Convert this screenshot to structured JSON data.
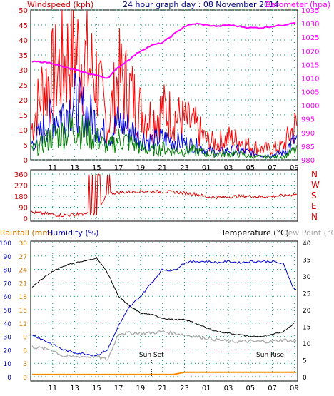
{
  "colors": {
    "windspeed": "#ff0000",
    "gust_red": "#ff0000",
    "avg_blue": "#0000dd",
    "avg_green": "#008000",
    "barometer": "#ff00ff",
    "wind_direction": "#dd0000",
    "temperature": "#000000",
    "humidity": "#0000cc",
    "dew_point": "#aaaaaa",
    "rainfall": "#ff8800",
    "axis_label_left": "#cc0000",
    "axis_label_barometer": "#ff00ff",
    "title_color": "#000080",
    "rain_axis": "#cc7700",
    "hum_axis": "#0000aa",
    "temp_axis": "#000000",
    "grid": "#00aa66"
  },
  "header": {
    "windspeed_label": "Windspeed (kph)",
    "title": "24 hour graph day : 08 November 2014",
    "barometer_label": "Barometer (hpa)"
  },
  "panel3_header": {
    "rainfall_label": "Rainfall (mm)",
    "humidity_label": "Humidity (%)",
    "temperature_label": "Temperature (°C)",
    "dewpoint_label": "Dew Point (°C)"
  },
  "annotations": {
    "sunset": "Sun Set",
    "sunrise": "Sun Rise"
  },
  "chart_data": [
    {
      "type": "line",
      "panel": "wind-barometer",
      "x_ticks": [
        "11",
        "13",
        "15",
        "17",
        "19",
        "21",
        "23",
        "01",
        "03",
        "05",
        "07",
        "09"
      ],
      "ylim_left": [
        0,
        50
      ],
      "yticks_left": [
        "0",
        "5",
        "10",
        "15",
        "20",
        "25",
        "30",
        "35",
        "40",
        "45",
        "50"
      ],
      "ylim_right": [
        980,
        1035
      ],
      "yticks_right": [
        "980",
        "985",
        "990",
        "995",
        "1000",
        "1005",
        "1010",
        "1015",
        "1020",
        "1025",
        "1030",
        "1035"
      ],
      "hours": [
        9,
        10,
        11,
        12,
        13,
        14,
        15,
        16,
        17,
        18,
        19,
        20,
        21,
        22,
        23,
        24,
        25,
        26,
        27,
        28,
        29,
        30,
        31,
        32,
        33
      ],
      "series": [
        {
          "name": "Windspeed (kph)",
          "kind": "gust",
          "values": [
            10,
            25,
            30,
            35,
            40,
            35,
            30,
            12,
            30,
            25,
            18,
            15,
            18,
            16,
            14,
            12,
            7,
            6,
            8,
            7,
            5,
            4,
            4,
            5,
            12
          ]
        },
        {
          "kind": "average",
          "values": [
            6,
            12,
            18,
            20,
            24,
            20,
            16,
            9,
            16,
            13,
            9,
            8,
            9,
            8,
            7,
            6,
            4,
            3,
            4,
            4,
            3,
            2,
            2,
            3,
            8
          ]
        },
        {
          "kind": "average",
          "values": [
            3,
            5,
            8,
            9,
            11,
            9,
            7,
            4,
            7,
            6,
            4,
            3,
            4,
            3,
            3,
            3,
            2,
            2,
            2,
            2,
            1,
            1,
            1,
            1,
            3
          ]
        },
        {
          "name": "Barometer (hpa)",
          "axis": "right",
          "values": [
            1016,
            1016,
            1015.5,
            1014,
            1013,
            1012,
            1011,
            1010,
            1014,
            1017,
            1020,
            1022,
            1023,
            1026,
            1029,
            1030,
            1029.5,
            1029,
            1029.5,
            1029,
            1028.5,
            1028.5,
            1029,
            1029.5,
            1030.5
          ]
        }
      ]
    },
    {
      "type": "line",
      "panel": "wind-direction",
      "x_ticks": [
        "11",
        "13",
        "15",
        "17",
        "19",
        "21",
        "23",
        "01",
        "03",
        "05",
        "07",
        "09"
      ],
      "ylim_left": [
        0,
        360
      ],
      "yticks_left": [
        "0",
        "90",
        "180",
        "270",
        "360"
      ],
      "compass_labels": [
        "N",
        "W",
        "S",
        "E",
        "N"
      ],
      "hours": [
        9,
        10,
        11,
        12,
        13,
        14,
        15,
        16,
        17,
        18,
        19,
        20,
        21,
        22,
        23,
        24,
        25,
        26,
        27,
        28,
        29,
        30,
        31,
        32,
        33
      ],
      "series": [
        {
          "name": "Wind direction",
          "values": [
            50,
            40,
            30,
            25,
            30,
            40,
            35,
            200,
            210,
            215,
            220,
            220,
            215,
            215,
            205,
            200,
            175,
            170,
            175,
            180,
            180,
            175,
            180,
            185,
            195
          ]
        }
      ]
    },
    {
      "type": "line",
      "panel": "temp-humidity-rain",
      "x_ticks": [
        "11",
        "13",
        "15",
        "17",
        "19",
        "21",
        "23",
        "01",
        "03",
        "05",
        "07",
        "09"
      ],
      "ylim_humidity": [
        0,
        100
      ],
      "yticks_humidity": [
        "0",
        "10",
        "20",
        "30",
        "40",
        "50",
        "60",
        "70",
        "80",
        "90",
        "100"
      ],
      "ylim_rain": [
        0,
        30
      ],
      "yticks_rain": [
        "0",
        "3",
        "6",
        "9",
        "12",
        "15",
        "18",
        "21",
        "24",
        "27",
        "30"
      ],
      "ylim_temperature": [
        0,
        40
      ],
      "yticks_temperature": [
        "0",
        "5",
        "10",
        "15",
        "20",
        "25",
        "30",
        "35",
        "40"
      ],
      "hours": [
        9,
        10,
        11,
        12,
        13,
        14,
        15,
        16,
        17,
        18,
        19,
        20,
        21,
        22,
        23,
        24,
        25,
        26,
        27,
        28,
        29,
        30,
        31,
        32,
        33
      ],
      "series": [
        {
          "name": "Temperature (°C)",
          "axis": "temperature",
          "values": [
            26.5,
            29,
            31.5,
            33,
            34,
            34.5,
            35.5,
            31,
            24,
            21,
            19,
            18.5,
            17.5,
            17,
            17,
            16,
            14.5,
            13.5,
            13,
            12.5,
            12,
            12,
            12.5,
            13.5,
            16
          ]
        },
        {
          "name": "Humidity (%)",
          "axis": "humidity",
          "values": [
            32,
            28,
            24,
            20,
            18,
            17,
            16,
            20,
            38,
            52,
            60,
            70,
            80,
            79,
            85,
            86,
            86,
            85,
            86,
            85,
            86,
            86,
            86,
            84,
            65
          ]
        },
        {
          "name": "Dew Point (°C)",
          "axis": "temperature",
          "values": [
            9,
            8.5,
            8,
            6,
            6,
            6,
            6,
            5,
            13,
            13,
            13,
            13,
            13.5,
            13,
            12.5,
            12,
            11.5,
            11,
            10.5,
            10.5,
            10.5,
            10.5,
            10.5,
            11,
            10.5
          ]
        },
        {
          "name": "Rainfall (mm)",
          "axis": "rain",
          "values": [
            0.5,
            0.5,
            0.5,
            0.5,
            0.5,
            0.5,
            0.5,
            0.5,
            0.5,
            0.5,
            0.5,
            0.5,
            0.5,
            0.5,
            1.0,
            1.0,
            1.0,
            1.0,
            1.0,
            1.0,
            1.0,
            1.0,
            1.0,
            1.0,
            1.0
          ]
        }
      ],
      "sunset_hour": 20.0,
      "sunrise_hour": 30.8
    }
  ]
}
